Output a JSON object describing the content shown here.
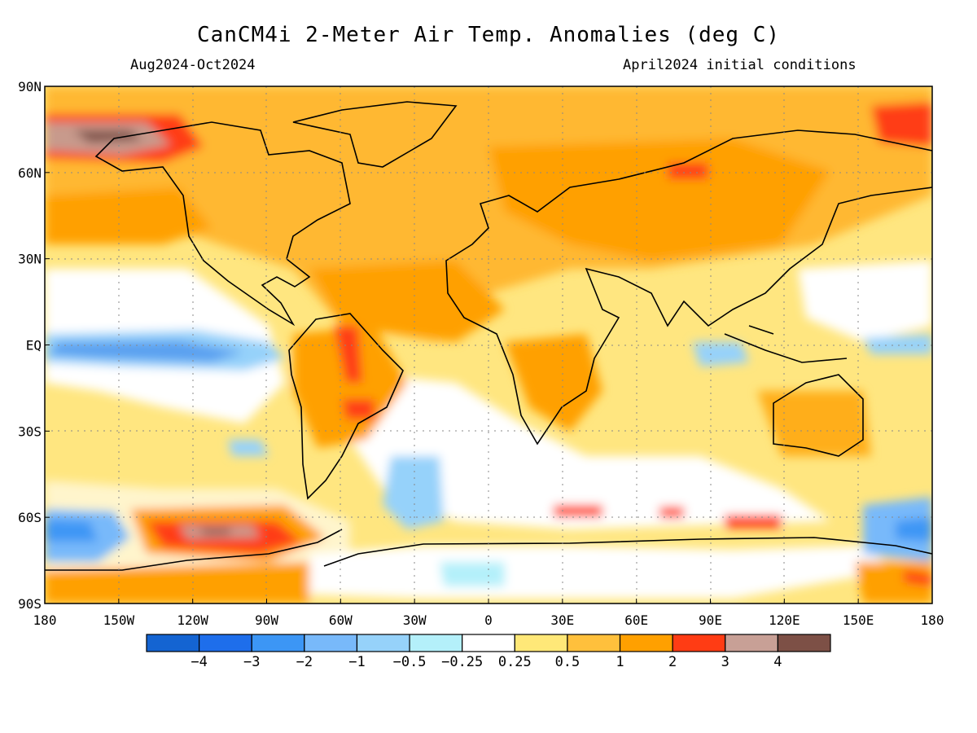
{
  "title": "CanCM4i 2-Meter Air Temp. Anomalies (deg C)",
  "period": "Aug2024-Oct2024",
  "initial_conditions": "April2024 initial conditions",
  "map": {
    "lon_labels": [
      "180",
      "150W",
      "120W",
      "90W",
      "60W",
      "30W",
      "0",
      "30E",
      "60E",
      "90E",
      "120E",
      "150E",
      "180"
    ],
    "lat_labels": [
      "90N",
      "60N",
      "30N",
      "EQ",
      "30S",
      "60S",
      "90S"
    ],
    "background_color": "#ffe680",
    "regions": [
      {
        "name": "tropical-pacific-cool",
        "color": "#80c0ff",
        "lon": -130,
        "lat": 0
      },
      {
        "name": "north-pacific-warm",
        "color": "#ffa000",
        "lon": -160,
        "lat": 45
      },
      {
        "name": "arctic-alaska-hot",
        "color": "#a0705c",
        "lon": -130,
        "lat": 74
      },
      {
        "name": "south-pacific-hot",
        "color": "#c89a8c",
        "lon": -105,
        "lat": -62
      },
      {
        "name": "south-america-warm",
        "color": "#ff3c14",
        "lon": -55,
        "lat": -15
      },
      {
        "name": "eurasia-warm",
        "color": "#ffa000",
        "lon": 80,
        "lat": 55
      },
      {
        "name": "antarctic-white",
        "color": "#ffffff",
        "lon": 0,
        "lat": -75
      }
    ]
  },
  "colorbar": {
    "colors": [
      "#1464d2",
      "#1e6eeb",
      "#3c96f5",
      "#78b9fa",
      "#96d2fa",
      "#b4f0fa",
      "#ffffff",
      "#ffe878",
      "#ffc03c",
      "#ffa000",
      "#ff3c14",
      "#c8a096",
      "#7d5046"
    ],
    "labels": [
      "-4",
      "-3",
      "-2",
      "-1",
      "-0.5",
      "-0.25",
      "0.25",
      "0.5",
      "1",
      "2",
      "3",
      "4"
    ]
  }
}
